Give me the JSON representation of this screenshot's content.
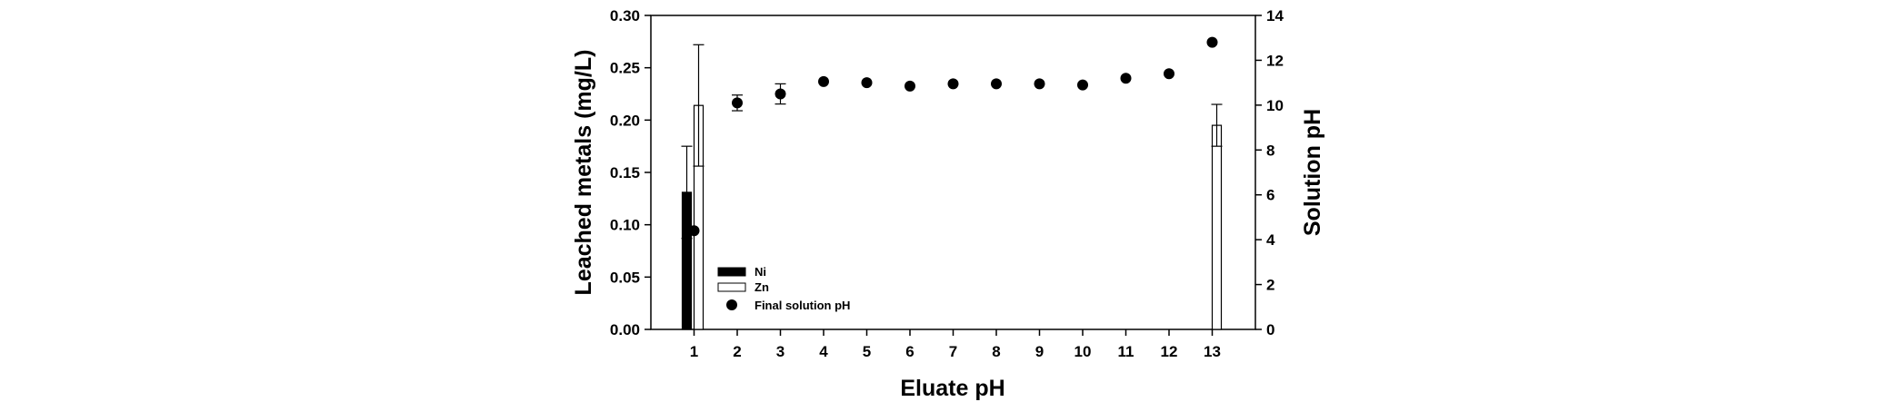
{
  "chart_data": {
    "type": "bar",
    "xlabel": "Eluate pH",
    "ylabel": "Leached metals (mg/L)",
    "y2label": "Solution pH",
    "categories": [
      "1",
      "2",
      "3",
      "4",
      "5",
      "6",
      "7",
      "8",
      "9",
      "10",
      "11",
      "12",
      "13"
    ],
    "xlim": [
      0,
      14
    ],
    "ylim": [
      0,
      0.3
    ],
    "y2lim": [
      0,
      14
    ],
    "yticks": [
      "0.00",
      "0.05",
      "0.10",
      "0.15",
      "0.20",
      "0.25",
      "0.30"
    ],
    "y2ticks": [
      "0",
      "2",
      "4",
      "6",
      "8",
      "10",
      "12",
      "14"
    ],
    "series": [
      {
        "name": "Ni",
        "kind": "bar",
        "axis": "left",
        "fill": "#000000",
        "x": [
          1
        ],
        "values": [
          0.131
        ],
        "error": [
          0.044
        ]
      },
      {
        "name": "Zn",
        "kind": "bar",
        "axis": "left",
        "fill": "#ffffff",
        "x": [
          1,
          13
        ],
        "values": [
          0.214,
          0.195
        ],
        "error": [
          0.058,
          0.02
        ]
      },
      {
        "name": "Final solution pH",
        "kind": "scatter",
        "axis": "right",
        "fill": "#000000",
        "x": [
          1,
          2,
          3,
          4,
          5,
          6,
          7,
          8,
          9,
          10,
          11,
          12,
          13
        ],
        "values": [
          4.4,
          10.1,
          10.5,
          11.05,
          11.0,
          10.85,
          10.95,
          10.95,
          10.95,
          10.9,
          11.2,
          11.4,
          12.8
        ],
        "error": [
          0,
          0.35,
          0.45,
          0,
          0,
          0,
          0,
          0,
          0,
          0,
          0,
          0,
          0
        ]
      }
    ],
    "legend": {
      "position": "lower-left",
      "entries": [
        "Ni",
        "Zn",
        "Final solution pH"
      ]
    },
    "grid": false
  }
}
